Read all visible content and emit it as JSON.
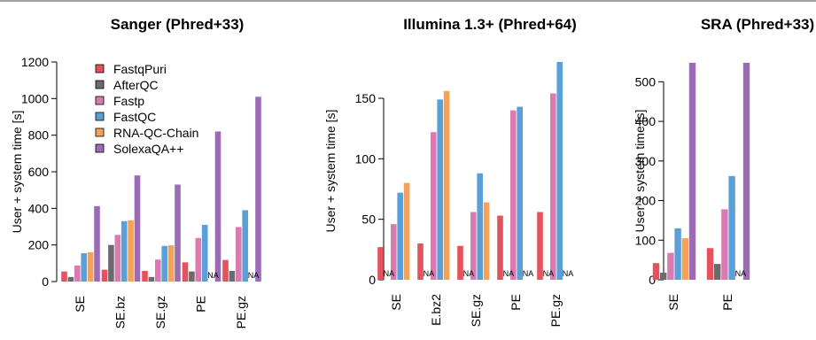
{
  "colors": {
    "FastqPuri": "#e5525d",
    "AfterQC": "#6b6b6b",
    "Fastp": "#d97ab1",
    "FastQC": "#5a9fd8",
    "RNA-QC-Chain": "#f4a259",
    "SolexaQA++": "#9b6bb6"
  },
  "chart_data": [
    {
      "type": "bar",
      "title": "Sanger (Phred+33)",
      "ylabel": "User + system time [s]",
      "ylim": [
        0,
        1200
      ],
      "yticks": [
        0,
        200,
        400,
        600,
        800,
        1000,
        1200
      ],
      "categories": [
        "SE",
        "SE.bz",
        "SE.gz",
        "PE",
        "PE.gz"
      ],
      "legend": {
        "placement": "top-left",
        "entries": [
          "FastqPuri",
          "AfterQC",
          "Fastp",
          "FastQC",
          "RNA-QC-Chain",
          "SolexaQA++"
        ]
      },
      "na_label": "NA",
      "series": [
        {
          "name": "FastqPuri",
          "values": [
            55,
            65,
            58,
            105,
            118
          ]
        },
        {
          "name": "AfterQC",
          "values": [
            25,
            200,
            25,
            55,
            58
          ]
        },
        {
          "name": "Fastp",
          "values": [
            88,
            255,
            120,
            238,
            298
          ]
        },
        {
          "name": "FastQC",
          "values": [
            155,
            330,
            195,
            310,
            390
          ]
        },
        {
          "name": "RNA-QC-Chain",
          "values": [
            160,
            335,
            198,
            null,
            null
          ]
        },
        {
          "name": "SolexaQA++",
          "values": [
            412,
            580,
            530,
            820,
            1010
          ]
        }
      ]
    },
    {
      "type": "bar",
      "title": "Illumina 1.3+ (Phred+64)",
      "ylabel": "User + system time [s]",
      "ylim": [
        0,
        180
      ],
      "yticks": [
        0,
        50,
        100,
        150
      ],
      "categories": [
        "SE",
        "E.bz2",
        "SE.gz",
        "PE",
        "PE.gz"
      ],
      "na_label": "NA",
      "series": [
        {
          "name": "FastqPuri",
          "values": [
            27,
            30,
            28,
            53,
            56
          ]
        },
        {
          "name": "AfterQC",
          "values": [
            null,
            null,
            null,
            null,
            null
          ]
        },
        {
          "name": "Fastp",
          "values": [
            46,
            122,
            56,
            140,
            154
          ]
        },
        {
          "name": "FastQC",
          "values": [
            72,
            149,
            88,
            143,
            180
          ]
        },
        {
          "name": "RNA-QC-Chain",
          "values": [
            80,
            156,
            64,
            null,
            null
          ]
        },
        {
          "name": "SolexaQA++",
          "values": [
            null,
            null,
            null,
            null,
            null
          ]
        }
      ]
    },
    {
      "type": "bar",
      "title": "SRA (Phred+33)",
      "ylabel": "User + system time [s]",
      "ylim": [
        0,
        550
      ],
      "yticks": [
        0,
        100,
        200,
        300,
        400,
        500
      ],
      "categories": [
        "SE",
        "PE"
      ],
      "na_label": "NA",
      "series": [
        {
          "name": "FastqPuri",
          "values": [
            42,
            80
          ]
        },
        {
          "name": "AfterQC",
          "values": [
            18,
            40
          ]
        },
        {
          "name": "Fastp",
          "values": [
            68,
            178
          ]
        },
        {
          "name": "FastQC",
          "values": [
            130,
            262
          ]
        },
        {
          "name": "RNA-QC-Chain",
          "values": [
            105,
            null
          ]
        },
        {
          "name": "SolexaQA++",
          "values": [
            548,
            548
          ]
        }
      ]
    }
  ]
}
